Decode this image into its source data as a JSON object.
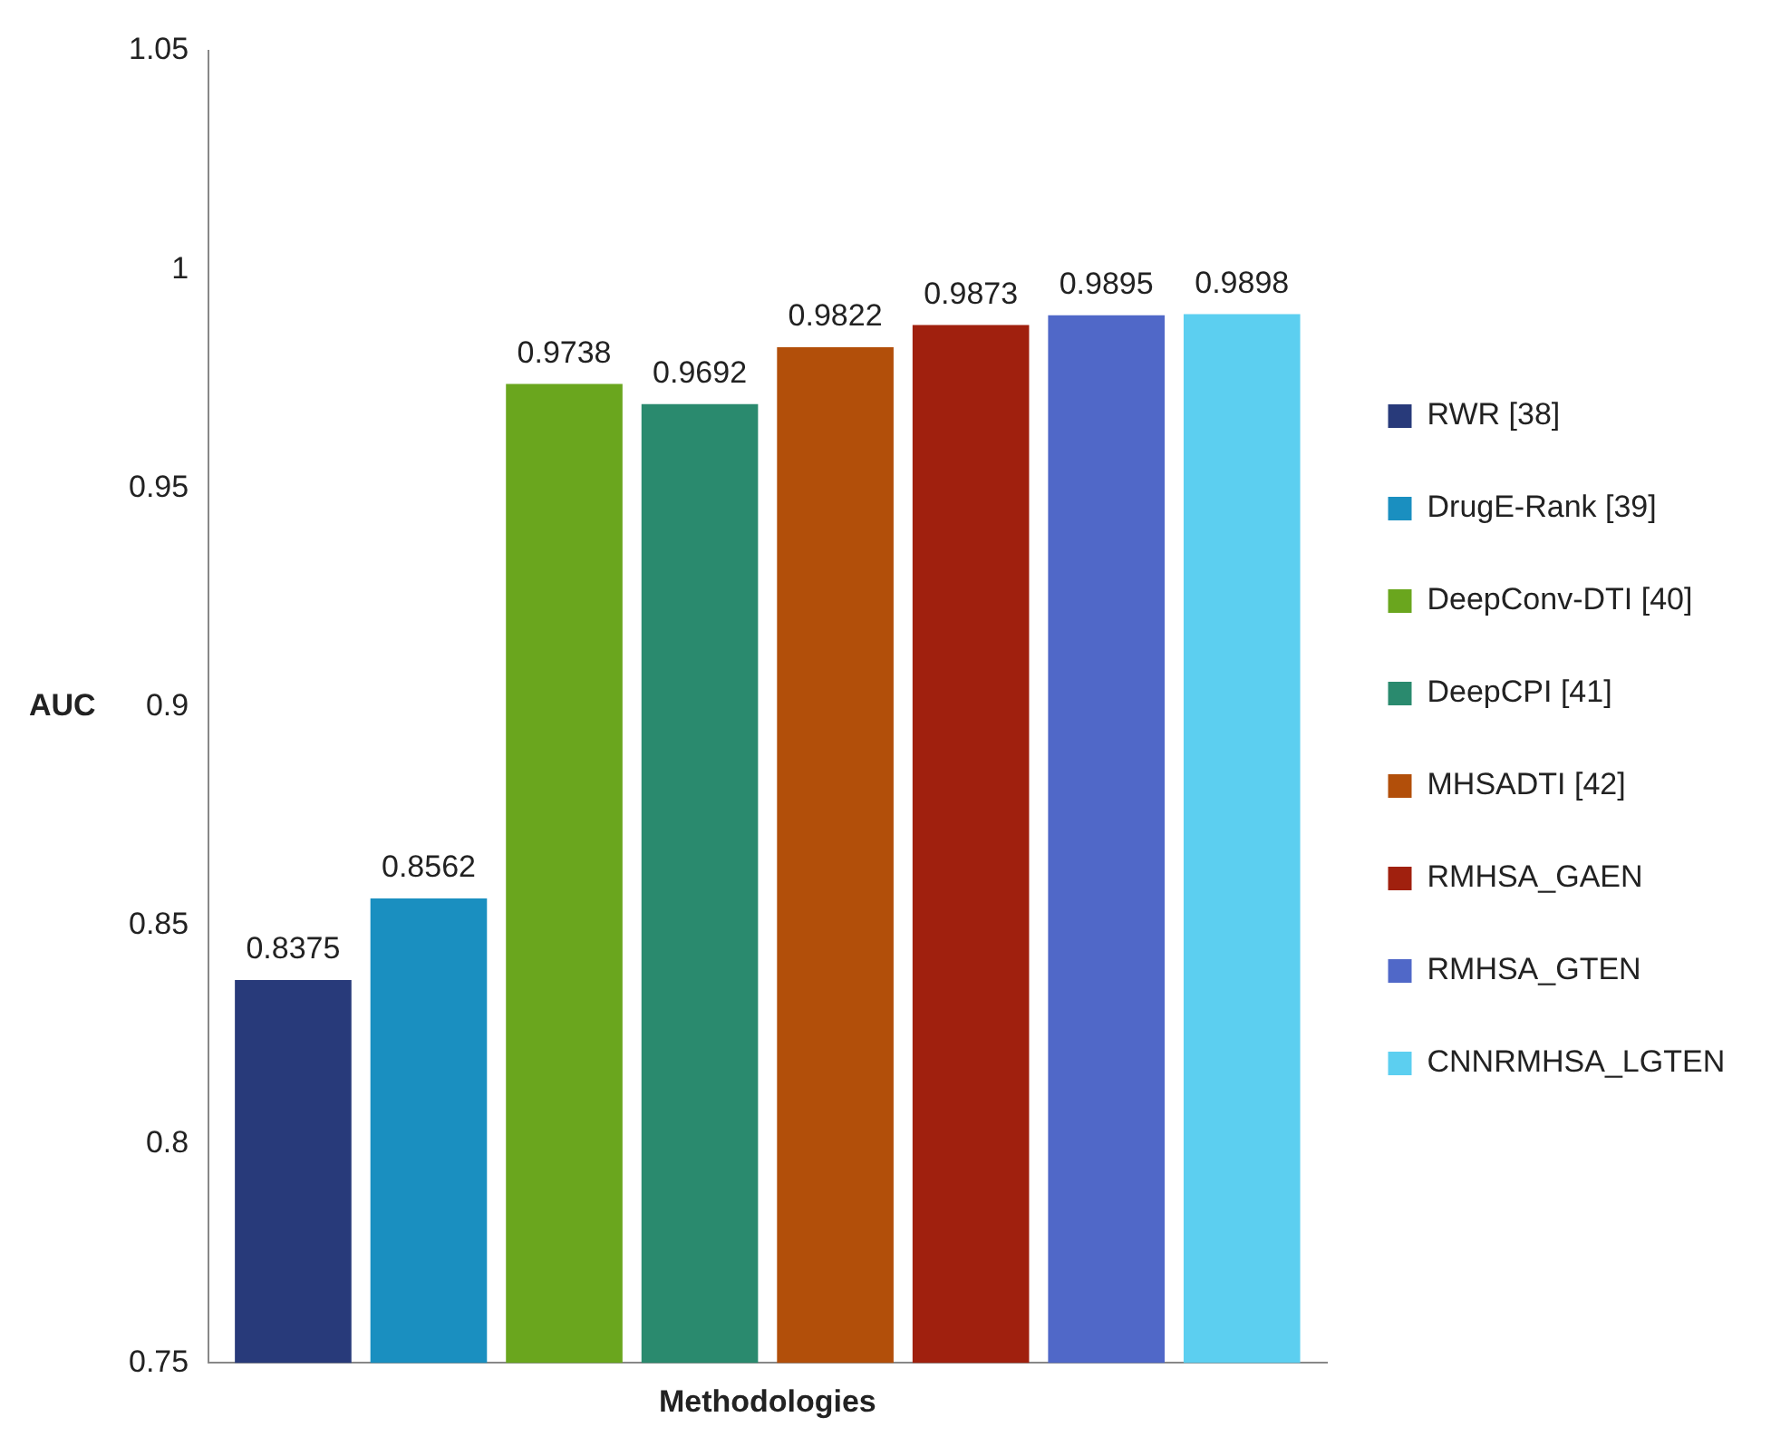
{
  "chart_data": {
    "type": "bar",
    "xlabel": "Methodologies",
    "ylabel": "AUC",
    "categories": [
      null
    ],
    "series": [
      {
        "name": "RWR [38]",
        "color": "#283a7a",
        "values": [
          0.8375
        ]
      },
      {
        "name": "DrugE-Rank [39]",
        "color": "#1a8fc0",
        "values": [
          0.8562
        ]
      },
      {
        "name": "DeepConv-DTI [40]",
        "color": "#6aa61e",
        "values": [
          0.9738
        ]
      },
      {
        "name": "DeepCPI [41]",
        "color": "#2a8a6e",
        "values": [
          0.9692
        ]
      },
      {
        "name": "MHSADTI [42]",
        "color": "#b24f0a",
        "values": [
          0.9822
        ]
      },
      {
        "name": "RMHSA_GAEN",
        "color": "#a0200e",
        "values": [
          0.9873
        ]
      },
      {
        "name": "RMHSA_GTEN",
        "color": "#5068c8",
        "values": [
          0.9895
        ]
      },
      {
        "name": "CNNRMHSA_LGTEN",
        "color": "#5ccff0",
        "values": [
          0.9898
        ]
      }
    ],
    "ylim": [
      0.75,
      1.05
    ],
    "yticks": [
      0.75,
      0.8,
      0.85,
      0.9,
      0.95,
      1,
      1.05
    ],
    "grid": false,
    "legend": "right",
    "data_labels": true
  }
}
